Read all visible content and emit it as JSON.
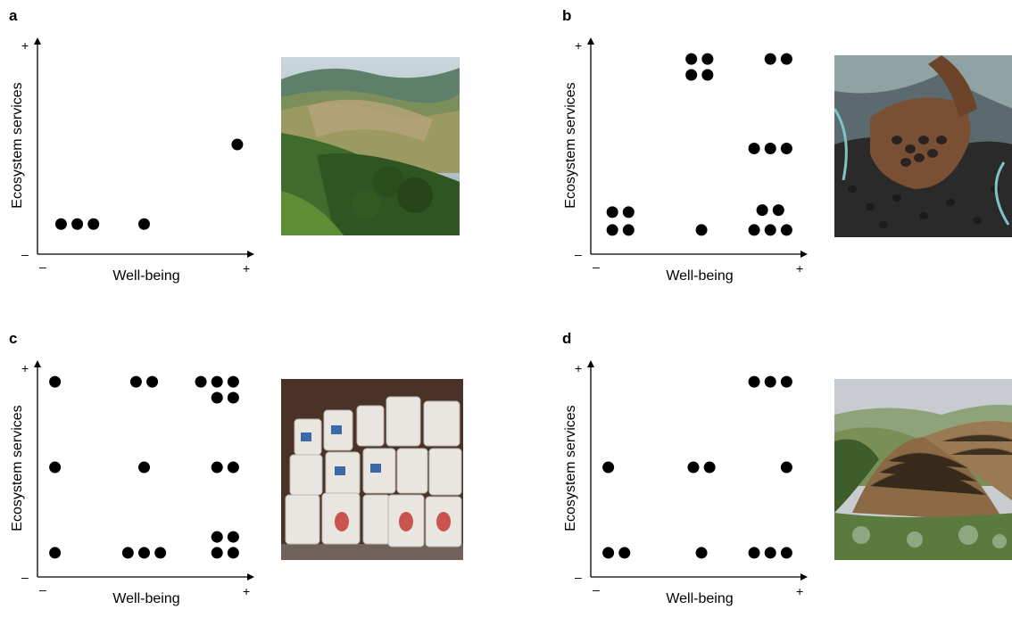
{
  "panels": [
    {
      "id": "a",
      "letter": "a",
      "photo": "hillside forest and cleared farmland",
      "chart_data": {
        "type": "scatter",
        "xlabel": "Well-being",
        "ylabel": "Ecosystem services",
        "x_ticks": [
          "–",
          "+"
        ],
        "y_ticks": [
          "–",
          "+"
        ],
        "xlim": [
          0,
          10
        ],
        "ylim": [
          0,
          10
        ],
        "grid": false,
        "points": [
          {
            "x": 0.9,
            "y": 1.2
          },
          {
            "x": 1.7,
            "y": 1.2
          },
          {
            "x": 2.5,
            "y": 1.2
          },
          {
            "x": 5.0,
            "y": 1.2
          },
          {
            "x": 9.6,
            "y": 5.2
          }
        ]
      }
    },
    {
      "id": "b",
      "letter": "b",
      "photo": "hand holding dark seeds over sack",
      "chart_data": {
        "type": "scatter",
        "xlabel": "Well-being",
        "ylabel": "Ecosystem services",
        "x_ticks": [
          "–",
          "+"
        ],
        "y_ticks": [
          "–",
          "+"
        ],
        "xlim": [
          0,
          10
        ],
        "ylim": [
          0,
          10
        ],
        "grid": false,
        "points": [
          {
            "x": 0.8,
            "y": 1.8
          },
          {
            "x": 1.6,
            "y": 1.8
          },
          {
            "x": 0.8,
            "y": 0.9
          },
          {
            "x": 1.6,
            "y": 0.9
          },
          {
            "x": 4.7,
            "y": 9.5
          },
          {
            "x": 5.5,
            "y": 9.5
          },
          {
            "x": 4.7,
            "y": 8.7
          },
          {
            "x": 5.5,
            "y": 8.7
          },
          {
            "x": 5.2,
            "y": 0.9
          },
          {
            "x": 8.6,
            "y": 9.5
          },
          {
            "x": 9.4,
            "y": 9.5
          },
          {
            "x": 7.8,
            "y": 5.0
          },
          {
            "x": 8.6,
            "y": 5.0
          },
          {
            "x": 9.4,
            "y": 5.0
          },
          {
            "x": 8.2,
            "y": 1.9
          },
          {
            "x": 9.0,
            "y": 1.9
          },
          {
            "x": 7.8,
            "y": 0.9
          },
          {
            "x": 8.6,
            "y": 0.9
          },
          {
            "x": 9.4,
            "y": 0.9
          }
        ]
      }
    },
    {
      "id": "c",
      "letter": "c",
      "photo": "stacked white fertilizer sacks",
      "chart_data": {
        "type": "scatter",
        "xlabel": "Well-being",
        "ylabel": "Ecosystem services",
        "x_ticks": [
          "–",
          "+"
        ],
        "y_ticks": [
          "–",
          "+"
        ],
        "xlim": [
          0,
          10
        ],
        "ylim": [
          0,
          10
        ],
        "grid": false,
        "points": [
          {
            "x": 0.6,
            "y": 9.5
          },
          {
            "x": 0.6,
            "y": 5.2
          },
          {
            "x": 0.6,
            "y": 0.9
          },
          {
            "x": 4.6,
            "y": 9.5
          },
          {
            "x": 5.4,
            "y": 9.5
          },
          {
            "x": 5.0,
            "y": 5.2
          },
          {
            "x": 4.2,
            "y": 0.9
          },
          {
            "x": 5.0,
            "y": 0.9
          },
          {
            "x": 5.8,
            "y": 0.9
          },
          {
            "x": 7.8,
            "y": 9.5
          },
          {
            "x": 8.6,
            "y": 9.5
          },
          {
            "x": 9.4,
            "y": 9.5
          },
          {
            "x": 8.6,
            "y": 8.7
          },
          {
            "x": 9.4,
            "y": 8.7
          },
          {
            "x": 8.6,
            "y": 5.2
          },
          {
            "x": 9.4,
            "y": 5.2
          },
          {
            "x": 8.6,
            "y": 1.7
          },
          {
            "x": 9.4,
            "y": 1.7
          },
          {
            "x": 8.6,
            "y": 0.9
          },
          {
            "x": 9.4,
            "y": 0.9
          }
        ]
      }
    },
    {
      "id": "d",
      "letter": "d",
      "photo": "terraced green hills",
      "chart_data": {
        "type": "scatter",
        "xlabel": "Well-being",
        "ylabel": "Ecosystem services",
        "x_ticks": [
          "–",
          "+"
        ],
        "y_ticks": [
          "–",
          "+"
        ],
        "xlim": [
          0,
          10
        ],
        "ylim": [
          0,
          10
        ],
        "grid": false,
        "points": [
          {
            "x": 0.6,
            "y": 5.2
          },
          {
            "x": 0.6,
            "y": 0.9
          },
          {
            "x": 1.4,
            "y": 0.9
          },
          {
            "x": 4.8,
            "y": 5.2
          },
          {
            "x": 5.6,
            "y": 5.2
          },
          {
            "x": 5.2,
            "y": 0.9
          },
          {
            "x": 7.8,
            "y": 9.5
          },
          {
            "x": 8.6,
            "y": 9.5
          },
          {
            "x": 9.4,
            "y": 9.5
          },
          {
            "x": 9.4,
            "y": 5.2
          },
          {
            "x": 7.8,
            "y": 0.9
          },
          {
            "x": 8.6,
            "y": 0.9
          },
          {
            "x": 9.4,
            "y": 0.9
          }
        ]
      }
    }
  ]
}
